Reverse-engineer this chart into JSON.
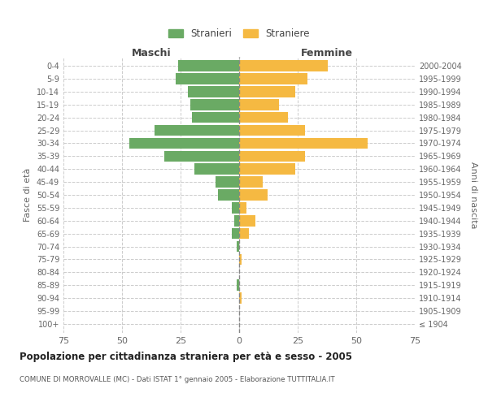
{
  "age_groups": [
    "100+",
    "95-99",
    "90-94",
    "85-89",
    "80-84",
    "75-79",
    "70-74",
    "65-69",
    "60-64",
    "55-59",
    "50-54",
    "45-49",
    "40-44",
    "35-39",
    "30-34",
    "25-29",
    "20-24",
    "15-19",
    "10-14",
    "5-9",
    "0-4"
  ],
  "birth_years": [
    "≤ 1904",
    "1905-1909",
    "1910-1914",
    "1915-1919",
    "1920-1924",
    "1925-1929",
    "1930-1934",
    "1935-1939",
    "1940-1944",
    "1945-1949",
    "1950-1954",
    "1955-1959",
    "1960-1964",
    "1965-1969",
    "1970-1974",
    "1975-1979",
    "1980-1984",
    "1985-1989",
    "1990-1994",
    "1995-1999",
    "2000-2004"
  ],
  "males": [
    0,
    0,
    0,
    1,
    0,
    0,
    1,
    3,
    2,
    3,
    9,
    10,
    19,
    32,
    47,
    36,
    20,
    21,
    22,
    27,
    26
  ],
  "females": [
    0,
    0,
    1,
    0,
    0,
    1,
    0,
    4,
    7,
    3,
    12,
    10,
    24,
    28,
    55,
    28,
    21,
    17,
    24,
    29,
    38
  ],
  "male_color": "#6aaa64",
  "female_color": "#f5b942",
  "bar_height": 0.85,
  "xlim": 75,
  "title": "Popolazione per cittadinanza straniera per età e sesso - 2005",
  "subtitle": "COMUNE DI MORROVALLE (MC) - Dati ISTAT 1° gennaio 2005 - Elaborazione TUTTITALIA.IT",
  "xlabel_left": "Maschi",
  "xlabel_right": "Femmine",
  "ylabel_left": "Fasce di età",
  "ylabel_right": "Anni di nascita",
  "legend_male": "Stranieri",
  "legend_female": "Straniere",
  "bg_color": "#ffffff",
  "grid_color": "#cccccc",
  "center_line_color": "#888888"
}
